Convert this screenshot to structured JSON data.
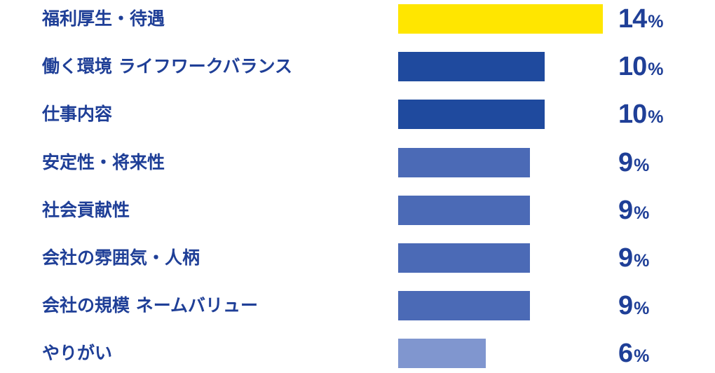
{
  "chart_data": {
    "type": "bar",
    "orientation": "horizontal",
    "categories": [
      "福利厚生・待遇",
      "働く環境 ライフワークバランス",
      "仕事内容",
      "安定性・将来性",
      "社会貢献性",
      "会社の雰囲気・人柄",
      "会社の規模 ネームバリュー",
      "やりがい"
    ],
    "values": [
      14,
      10,
      10,
      9,
      9,
      9,
      9,
      6
    ],
    "unit": "%",
    "xlim": [
      0,
      14
    ],
    "colors": [
      "#ffe600",
      "#1f4a9e",
      "#1f4a9e",
      "#4b6ab6",
      "#4b6ab6",
      "#4b6ab6",
      "#4b6ab6",
      "#8096cf"
    ],
    "label_color": "#1f3f97",
    "title": "",
    "xlabel": "",
    "ylabel": "",
    "grid": false,
    "legend": "none"
  }
}
